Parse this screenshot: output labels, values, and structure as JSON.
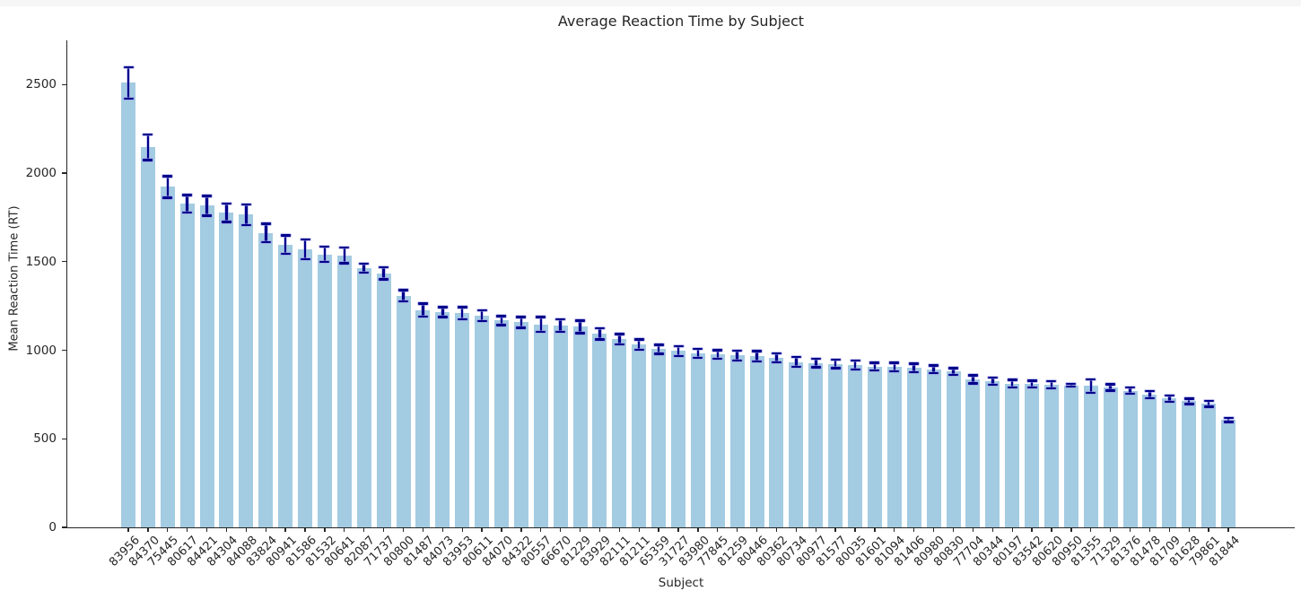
{
  "window": {
    "top_edge_color": "#f6f6f7",
    "background": "#ffffff"
  },
  "chart_data": {
    "type": "bar",
    "title": "Average Reaction Time by Subject",
    "xlabel": "Subject",
    "ylabel": "Mean Reaction Time (RT)",
    "ylim": [
      0,
      2750
    ],
    "yticks": [
      0,
      500,
      1000,
      1500,
      2000,
      2500
    ],
    "grid": false,
    "legend": false,
    "bar_color": "#a3cbe2",
    "error_color": "#00008b",
    "error_halo_color": "rgba(150,150,225,0.55)",
    "axis_color": "#262626",
    "error_bars": true,
    "categories": [
      "83956",
      "84370",
      "75445",
      "80617",
      "84421",
      "84304",
      "84088",
      "83824",
      "80941",
      "81586",
      "81532",
      "80641",
      "82087",
      "71737",
      "80800",
      "81487",
      "84073",
      "83953",
      "80611",
      "84070",
      "84322",
      "80557",
      "66670",
      "81229",
      "83929",
      "82111",
      "81211",
      "65359",
      "31727",
      "83980",
      "77845",
      "81259",
      "80446",
      "80362",
      "80734",
      "80977",
      "81577",
      "80035",
      "81601",
      "81094",
      "81406",
      "80980",
      "80830",
      "77704",
      "80344",
      "80197",
      "83542",
      "80620",
      "80950",
      "81355",
      "71329",
      "81376",
      "81478",
      "81709",
      "81628",
      "79861",
      "81844"
    ],
    "values": [
      2510,
      2145,
      1922,
      1827,
      1816,
      1776,
      1765,
      1663,
      1596,
      1570,
      1542,
      1536,
      1464,
      1435,
      1308,
      1227,
      1215,
      1210,
      1195,
      1168,
      1158,
      1145,
      1140,
      1132,
      1092,
      1062,
      1032,
      1006,
      996,
      982,
      976,
      970,
      966,
      958,
      934,
      928,
      922,
      917,
      908,
      905,
      900,
      893,
      880,
      836,
      826,
      812,
      809,
      805,
      802,
      798,
      790,
      772,
      750,
      727,
      712,
      698,
      607
    ],
    "errors": [
      88,
      72,
      62,
      50,
      55,
      52,
      58,
      52,
      52,
      55,
      42,
      45,
      26,
      34,
      31,
      36,
      28,
      34,
      30,
      25,
      30,
      42,
      35,
      35,
      32,
      30,
      28,
      25,
      28,
      25,
      25,
      28,
      30,
      25,
      28,
      25,
      24,
      26,
      22,
      24,
      25,
      22,
      20,
      22,
      20,
      22,
      18,
      20,
      8,
      38,
      18,
      18,
      20,
      18,
      15,
      16,
      12
    ]
  }
}
